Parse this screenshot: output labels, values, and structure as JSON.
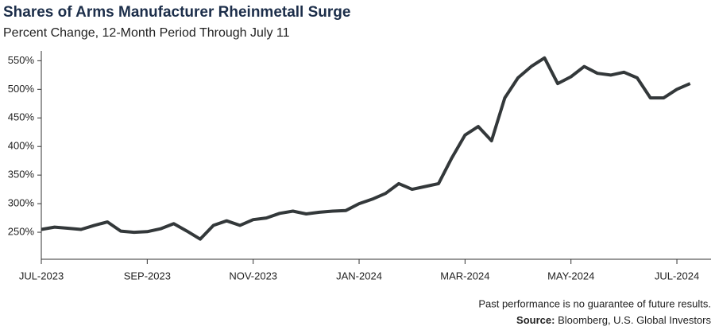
{
  "chart_data": {
    "type": "line",
    "title": "Shares of Arms Manufacturer Rheinmetall Surge",
    "subtitle": "Percent Change, 12-Month Period Through July 11",
    "x": [
      "2023-07",
      "2023-07",
      "2023-07",
      "2023-07",
      "2023-08",
      "2023-08",
      "2023-08",
      "2023-08",
      "2023-09",
      "2023-09",
      "2023-09",
      "2023-09",
      "2023-10",
      "2023-10",
      "2023-10",
      "2023-10",
      "2023-11",
      "2023-11",
      "2023-11",
      "2023-11",
      "2023-12",
      "2023-12",
      "2023-12",
      "2023-12",
      "2024-01",
      "2024-01",
      "2024-01",
      "2024-01",
      "2024-02",
      "2024-02",
      "2024-02",
      "2024-02",
      "2024-03",
      "2024-03",
      "2024-03",
      "2024-03",
      "2024-04",
      "2024-04",
      "2024-04",
      "2024-04",
      "2024-05",
      "2024-05",
      "2024-05",
      "2024-05",
      "2024-06",
      "2024-06",
      "2024-06",
      "2024-06",
      "2024-07",
      "2024-07"
    ],
    "series": [
      {
        "name": "Rheinmetall",
        "color": "#33383a",
        "values": [
          255,
          259,
          257,
          255,
          262,
          268,
          252,
          250,
          251,
          256,
          265,
          252,
          238,
          262,
          270,
          262,
          272,
          275,
          283,
          287,
          282,
          285,
          287,
          288,
          300,
          308,
          318,
          335,
          325,
          330,
          335,
          380,
          420,
          435,
          410,
          485,
          520,
          540,
          555,
          510,
          522,
          540,
          528,
          525,
          530,
          520,
          485,
          485,
          500,
          510
        ]
      }
    ],
    "xticks": [
      {
        "value": "2023-07",
        "label": "JUL-2023"
      },
      {
        "value": "2023-09",
        "label": "SEP-2023"
      },
      {
        "value": "2023-11",
        "label": "NOV-2023"
      },
      {
        "value": "2024-01",
        "label": "JAN-2024"
      },
      {
        "value": "2024-03",
        "label": "MAR-2024"
      },
      {
        "value": "2024-05",
        "label": "MAY-2024"
      },
      {
        "value": "2024-07",
        "label": "JUL-2024"
      }
    ],
    "ylim": [
      200,
      570
    ],
    "yticks": [
      {
        "value": 250,
        "label": "250%"
      },
      {
        "value": 300,
        "label": "300%"
      },
      {
        "value": 350,
        "label": "350%"
      },
      {
        "value": 400,
        "label": "400%"
      },
      {
        "value": 450,
        "label": "450%"
      },
      {
        "value": 500,
        "label": "500%"
      },
      {
        "value": 550,
        "label": "550%"
      }
    ],
    "note": "Past performance is no guarantee of future results.",
    "source_label": "Source:",
    "source": "Bloomberg, U.S. Global Investors"
  }
}
